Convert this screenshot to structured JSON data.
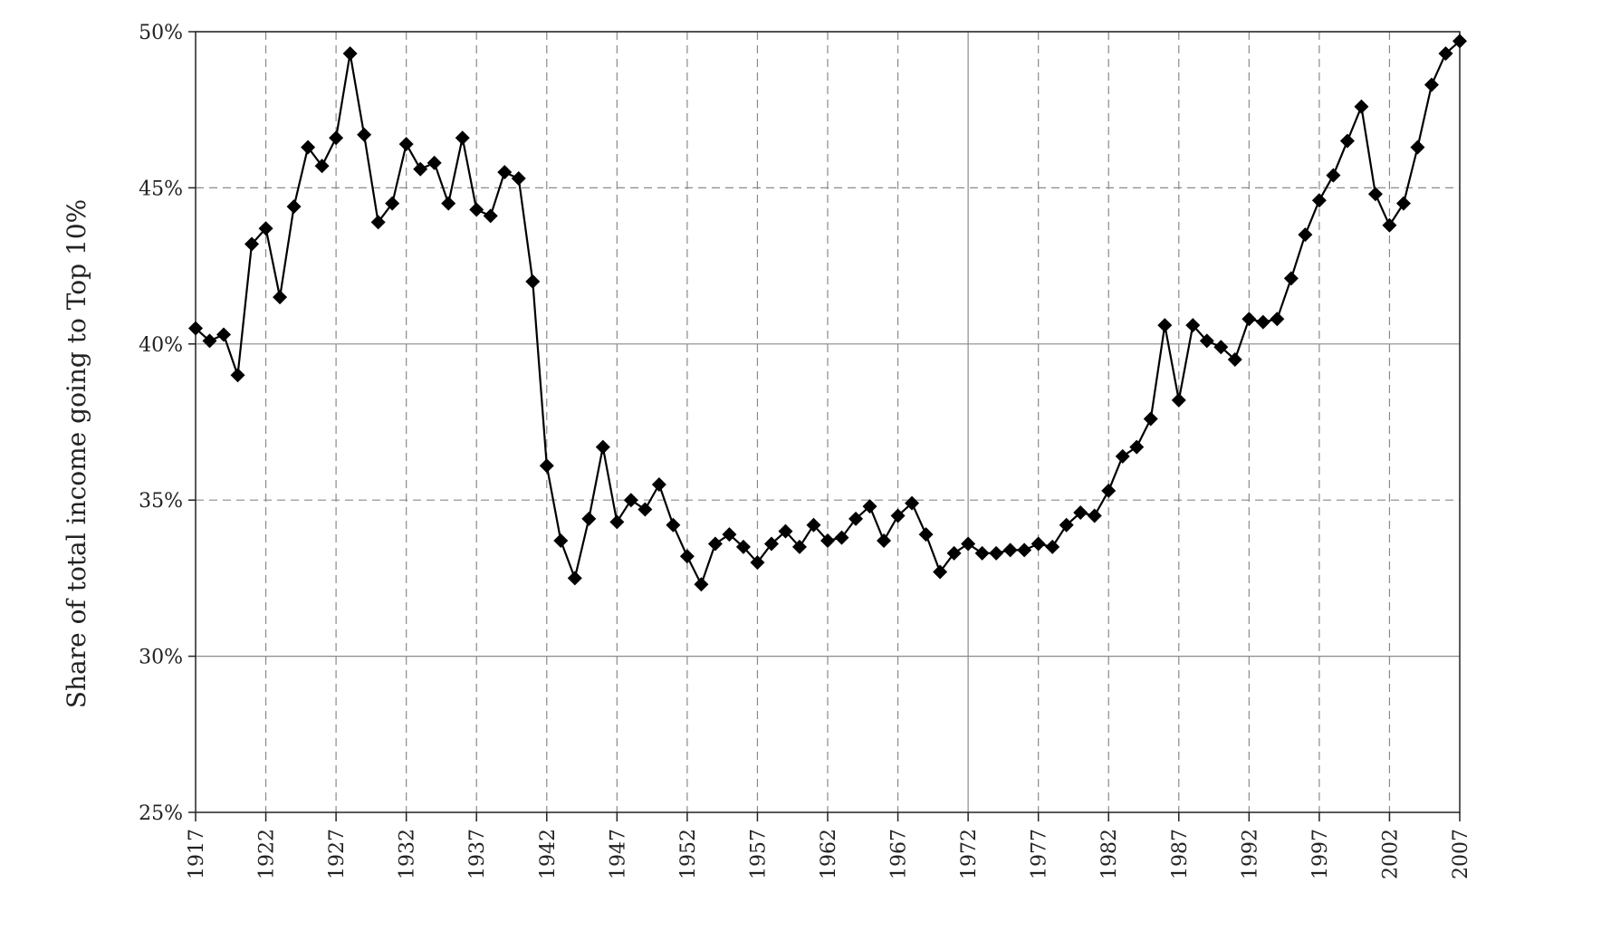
{
  "chart_data": {
    "type": "line",
    "title": "",
    "xlabel": "",
    "ylabel": "Share of total income going to Top 10%",
    "xlim": [
      1917,
      2007
    ],
    "ylim": [
      0.25,
      0.5
    ],
    "y_ticks": [
      {
        "value": 0.25,
        "label": "25%"
      },
      {
        "value": 0.3,
        "label": "30%"
      },
      {
        "value": 0.35,
        "label": "35%"
      },
      {
        "value": 0.4,
        "label": "40%"
      },
      {
        "value": 0.45,
        "label": "45%"
      },
      {
        "value": 0.5,
        "label": "50%"
      }
    ],
    "x_ticks": [
      "1917",
      "1922",
      "1927",
      "1932",
      "1937",
      "1942",
      "1947",
      "1952",
      "1957",
      "1962",
      "1967",
      "1972",
      "1977",
      "1982",
      "1987",
      "1992",
      "1997",
      "2002",
      "2007"
    ],
    "grid": true,
    "marker": "diamond",
    "series": [
      {
        "x": [
          1917,
          1918,
          1919,
          1920,
          1921,
          1922,
          1923,
          1924,
          1925,
          1926,
          1927,
          1928,
          1929,
          1930,
          1931,
          1932,
          1933,
          1934,
          1935,
          1936,
          1937,
          1938,
          1939,
          1940,
          1941,
          1942,
          1943,
          1944,
          1945,
          1946,
          1947,
          1948,
          1949,
          1950,
          1951,
          1952,
          1953,
          1954,
          1955,
          1956,
          1957,
          1958,
          1959,
          1960,
          1961,
          1962,
          1963,
          1964,
          1965,
          1966,
          1967,
          1968,
          1969,
          1970,
          1971,
          1972,
          1973,
          1974,
          1975,
          1976,
          1977,
          1978,
          1979,
          1980,
          1981,
          1982,
          1983,
          1984,
          1985,
          1986,
          1987,
          1988,
          1989,
          1990,
          1991,
          1992,
          1993,
          1994,
          1995,
          1996,
          1997,
          1998,
          1999,
          2000,
          2001,
          2002,
          2003,
          2004,
          2005,
          2006,
          2007
        ],
        "y": [
          0.405,
          0.401,
          0.403,
          0.39,
          0.432,
          0.437,
          0.415,
          0.444,
          0.463,
          0.457,
          0.466,
          0.493,
          0.467,
          0.439,
          0.445,
          0.464,
          0.456,
          0.458,
          0.445,
          0.466,
          0.443,
          0.441,
          0.455,
          0.453,
          0.42,
          0.361,
          0.337,
          0.325,
          0.344,
          0.367,
          0.343,
          0.35,
          0.347,
          0.355,
          0.342,
          0.332,
          0.323,
          0.336,
          0.339,
          0.335,
          0.33,
          0.336,
          0.34,
          0.335,
          0.342,
          0.337,
          0.338,
          0.344,
          0.348,
          0.337,
          0.345,
          0.349,
          0.339,
          0.327,
          0.333,
          0.336,
          0.333,
          0.333,
          0.334,
          0.334,
          0.336,
          0.335,
          0.342,
          0.346,
          0.345,
          0.353,
          0.364,
          0.367,
          0.376,
          0.406,
          0.382,
          0.406,
          0.401,
          0.399,
          0.395,
          0.408,
          0.407,
          0.408,
          0.421,
          0.435,
          0.446,
          0.454,
          0.465,
          0.476,
          0.448,
          0.438,
          0.445,
          0.463,
          0.483,
          0.493,
          0.497
        ]
      }
    ]
  }
}
